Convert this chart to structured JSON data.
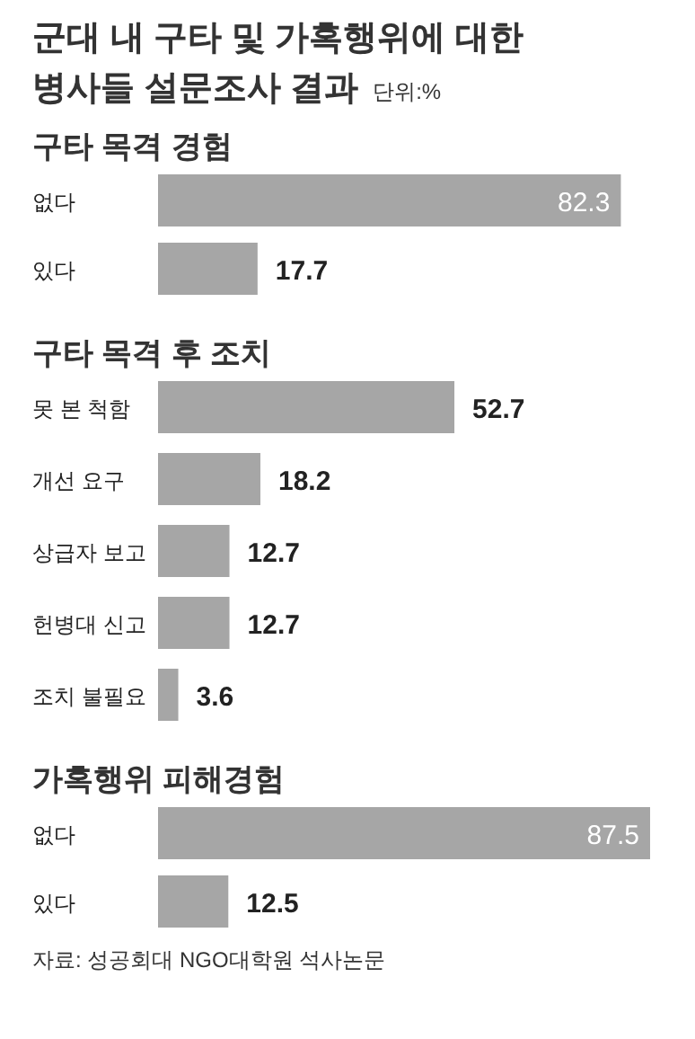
{
  "chart_data": [
    {
      "type": "bar",
      "orientation": "horizontal",
      "title": "구타 목격 경험",
      "annotations": [
        "군대 내 구타 및 가혹행위에 대한\n병사들 설문조사 결과",
        "단위:%"
      ],
      "categories": [
        "없다",
        "있다"
      ],
      "values": [
        82.3,
        17.7
      ],
      "color": "#a6a6a6",
      "data_labels": true
    },
    {
      "type": "bar",
      "orientation": "horizontal",
      "title": "구타 목격 후 조치",
      "categories": [
        "못 본 척함",
        "개선 요구",
        "상급자 보고",
        "헌병대 신고",
        "조치 불필요"
      ],
      "values": [
        52.7,
        18.2,
        12.7,
        12.7,
        3.6
      ],
      "color": "#a6a6a6",
      "data_labels": true
    },
    {
      "type": "bar",
      "orientation": "horizontal",
      "title": "가혹행위 피해경험",
      "annotations": [
        "자료: 성공회대 NGO대학원 석사논문"
      ],
      "categories": [
        "없다",
        "있다"
      ],
      "values": [
        87.5,
        12.5
      ],
      "color": "#a6a6a6",
      "data_labels": true
    }
  ]
}
